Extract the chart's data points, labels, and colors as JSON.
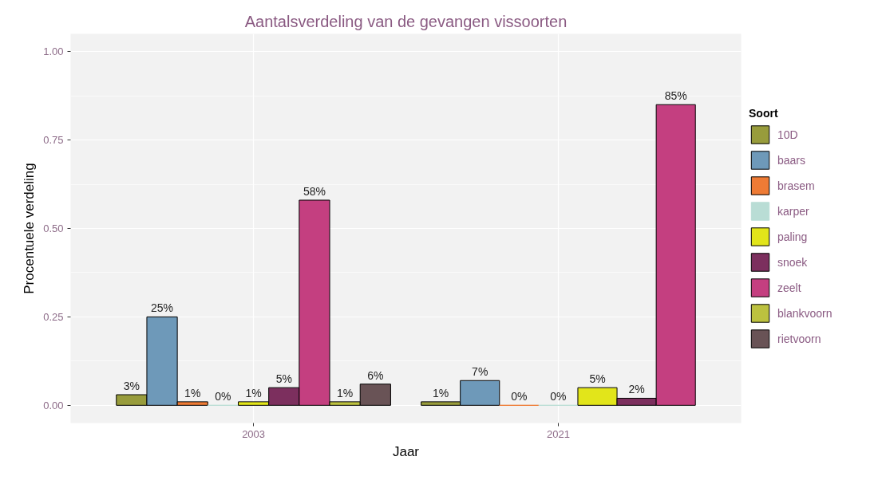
{
  "chart_data": {
    "type": "bar",
    "title": "Aantalsverdeling van de gevangen vissoorten",
    "xlabel": "Jaar",
    "ylabel": "Procentuele verdeling",
    "legend_title": "Soort",
    "categories": [
      "2003",
      "2021"
    ],
    "ylim": [
      -0.05,
      1.05
    ],
    "yticks": [
      {
        "value": 0,
        "label": "0.00"
      },
      {
        "value": 0.25,
        "label": "0.25"
      },
      {
        "value": 0.5,
        "label": "0.50"
      },
      {
        "value": 0.75,
        "label": "0.75"
      },
      {
        "value": 1,
        "label": "1.00"
      }
    ],
    "grid": true,
    "legend": "right",
    "series": [
      {
        "name": "10D",
        "color": "#989c3c",
        "values": [
          0.03,
          0.01
        ],
        "value_labels": [
          "3%",
          "1%"
        ]
      },
      {
        "name": "baars",
        "color": "#6e99b9",
        "values": [
          0.25,
          0.07
        ],
        "value_labels": [
          "25%",
          "7%"
        ]
      },
      {
        "name": "brasem",
        "color": "#ee7b35",
        "values": [
          0.01,
          0
        ],
        "value_labels": [
          "1%",
          "0%"
        ]
      },
      {
        "name": "karper",
        "color": "#b9ddd5",
        "values": [
          0,
          0
        ],
        "value_labels": [
          "0%",
          "0%"
        ]
      },
      {
        "name": "paling",
        "color": "#e2e51a",
        "values": [
          0.01,
          0.05
        ],
        "value_labels": [
          "1%",
          "5%"
        ]
      },
      {
        "name": "snoek",
        "color": "#7c2f5e",
        "values": [
          0.05,
          0.02
        ],
        "value_labels": [
          "5%",
          "2%"
        ]
      },
      {
        "name": "zeelt",
        "color": "#c43f80",
        "values": [
          0.58,
          0.85
        ],
        "value_labels": [
          "58%",
          "85%"
        ]
      },
      {
        "name": "blankvoorn",
        "color": "#bcc13f",
        "values": [
          0.01,
          null
        ],
        "value_labels": [
          "1%",
          null
        ]
      },
      {
        "name": "rietvoorn",
        "color": "#695356",
        "values": [
          0.06,
          null
        ],
        "value_labels": [
          "6%",
          null
        ]
      }
    ]
  }
}
